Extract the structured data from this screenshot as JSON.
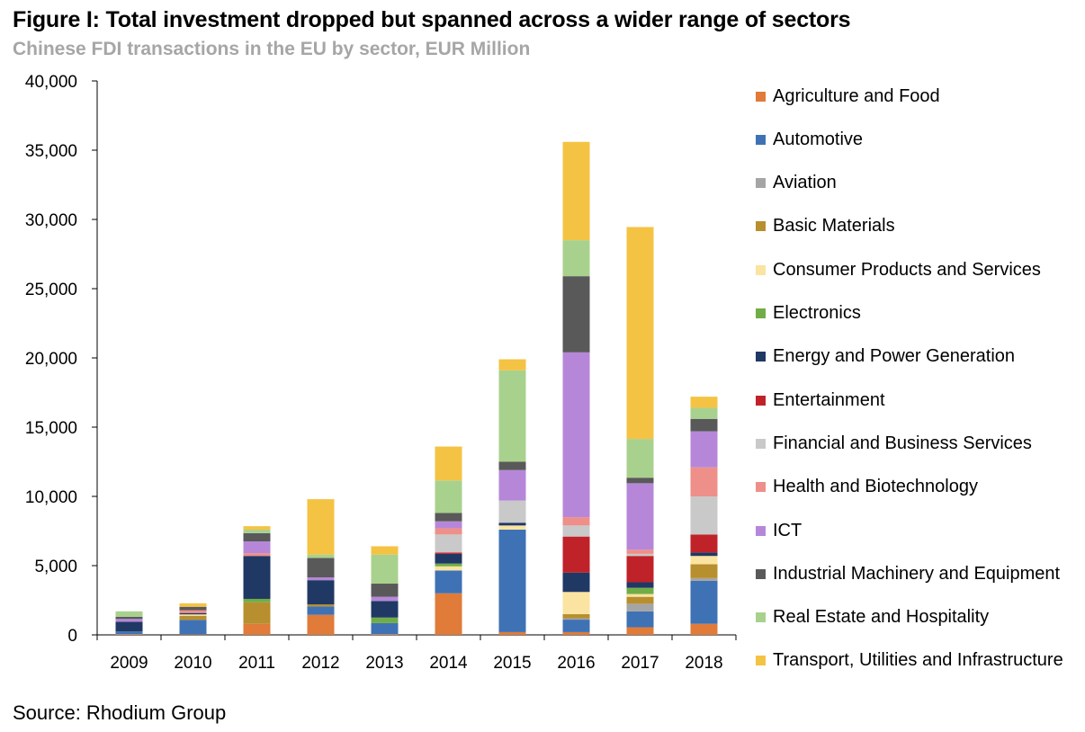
{
  "title": "Figure I: Total investment dropped but spanned across a wider range of sectors",
  "subtitle": "Chinese FDI transactions in the EU by sector, EUR Million",
  "source": "Source: Rhodium Group",
  "chart_data": {
    "type": "bar",
    "stacked": true,
    "categories": [
      "2009",
      "2010",
      "2011",
      "2012",
      "2013",
      "2014",
      "2015",
      "2016",
      "2017",
      "2018"
    ],
    "ylim": [
      0,
      40000
    ],
    "yticks": [
      0,
      5000,
      10000,
      15000,
      20000,
      25000,
      30000,
      35000,
      40000
    ],
    "ytick_labels": [
      "0",
      "5,000",
      "10,000",
      "15,000",
      "20,000",
      "25,000",
      "30,000",
      "35,000",
      "40,000"
    ],
    "grid": false,
    "legend_position": "right",
    "series": [
      {
        "name": "Agriculture and Food",
        "color": "#E07B39",
        "values": [
          50,
          30,
          800,
          1450,
          50,
          3000,
          200,
          200,
          550,
          800
        ]
      },
      {
        "name": "Automotive",
        "color": "#3F72B5",
        "values": [
          200,
          1050,
          0,
          600,
          800,
          1650,
          7400,
          900,
          1150,
          3100
        ]
      },
      {
        "name": "Aviation",
        "color": "#A5A5A5",
        "values": [
          0,
          0,
          0,
          0,
          0,
          0,
          0,
          100,
          550,
          200
        ]
      },
      {
        "name": "Basic Materials",
        "color": "#B88F2E",
        "values": [
          0,
          300,
          1550,
          150,
          0,
          0,
          0,
          300,
          500,
          1000
        ]
      },
      {
        "name": "Consumer Products and Services",
        "color": "#FBE3A1",
        "values": [
          0,
          100,
          0,
          0,
          0,
          300,
          300,
          1600,
          200,
          600
        ]
      },
      {
        "name": "Electronics",
        "color": "#70AD47",
        "values": [
          0,
          0,
          250,
          0,
          400,
          200,
          0,
          0,
          450,
          0
        ]
      },
      {
        "name": "Energy and Power Generation",
        "color": "#203864",
        "values": [
          700,
          100,
          3100,
          1750,
          1200,
          700,
          200,
          1400,
          400,
          250
        ]
      },
      {
        "name": "Entertainment",
        "color": "#C0222A",
        "values": [
          0,
          0,
          0,
          0,
          0,
          100,
          0,
          2600,
          1900,
          1300
        ]
      },
      {
        "name": "Financial and Business Services",
        "color": "#C9C9C9",
        "values": [
          0,
          0,
          0,
          0,
          0,
          1300,
          1600,
          800,
          150,
          2750
        ]
      },
      {
        "name": "Health and Biotechnology",
        "color": "#EE8F8A",
        "values": [
          0,
          200,
          200,
          0,
          0,
          450,
          0,
          600,
          300,
          2100
        ]
      },
      {
        "name": "ICT",
        "color": "#B687D9",
        "values": [
          200,
          0,
          850,
          200,
          300,
          500,
          2200,
          11900,
          4800,
          2600
        ]
      },
      {
        "name": "Industrial Machinery and Equipment",
        "color": "#595959",
        "values": [
          150,
          250,
          600,
          1400,
          950,
          600,
          600,
          5500,
          400,
          900
        ]
      },
      {
        "name": "Real Estate and Hospitality",
        "color": "#A9D18E",
        "values": [
          400,
          0,
          250,
          250,
          2100,
          2350,
          6600,
          2600,
          2800,
          800
        ]
      },
      {
        "name": "Transport, Utilities and Infrastructure",
        "color": "#F5C343",
        "values": [
          0,
          250,
          250,
          4000,
          600,
          2450,
          800,
          7100,
          15300,
          800
        ]
      }
    ]
  }
}
